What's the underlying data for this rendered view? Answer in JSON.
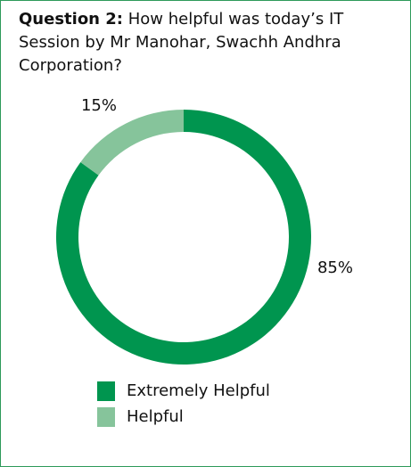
{
  "chart_data": {
    "type": "donut",
    "title": "Question 2:",
    "question": "How helpful was today’s IT Session by Mr Manohar, Swachh Andhra Corporation?",
    "categories": [
      "Extremely Helpful",
      "Helpful"
    ],
    "values": [
      85,
      15
    ],
    "value_labels": [
      "85%",
      "15%"
    ],
    "colors": [
      "#00954f",
      "#86c49b"
    ],
    "legend": "bottom"
  }
}
